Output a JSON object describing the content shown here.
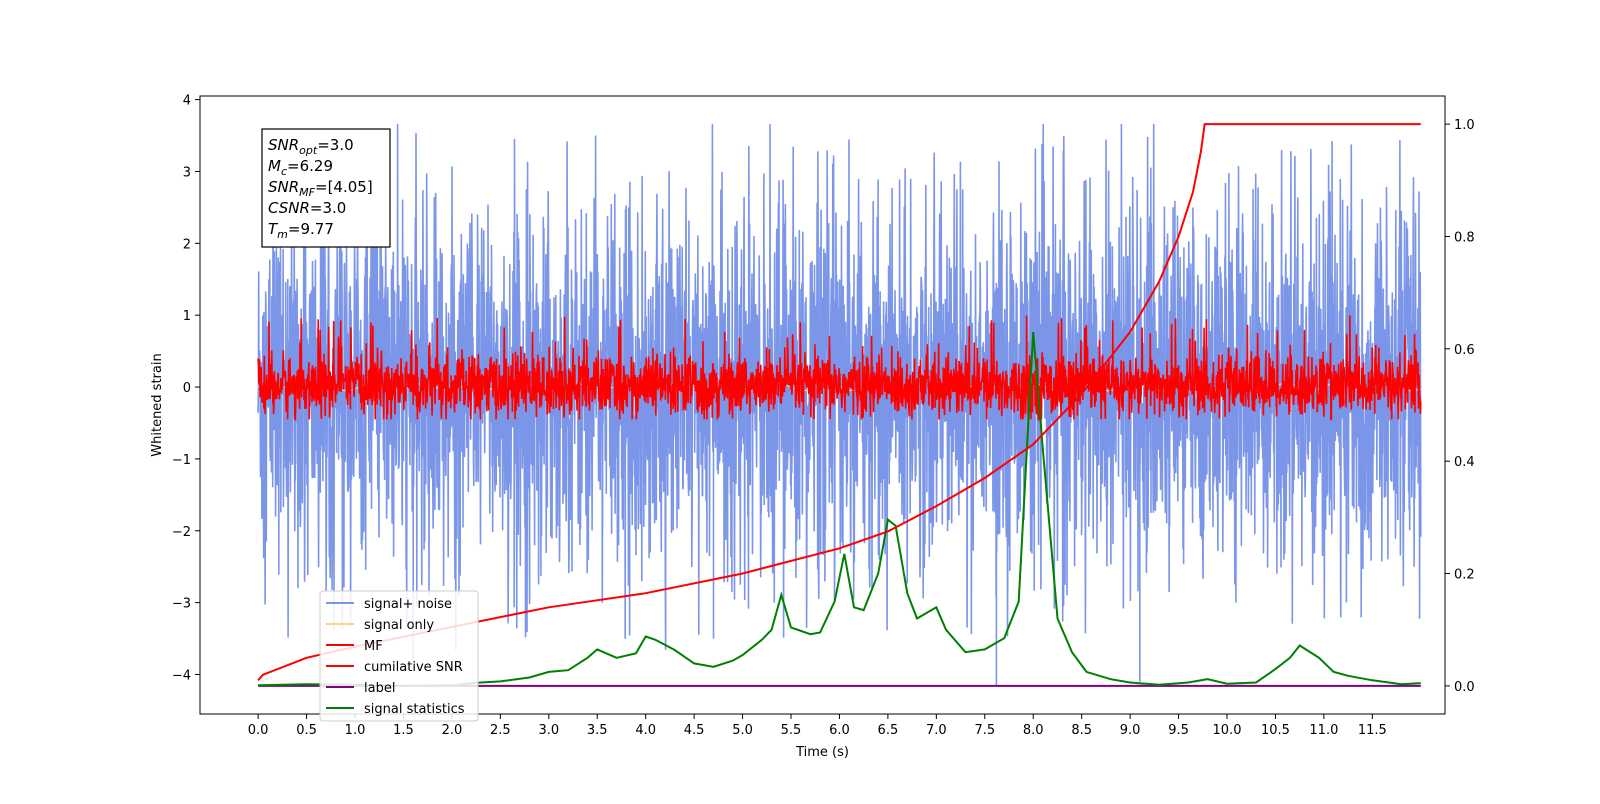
{
  "chart_data": {
    "type": "line",
    "xlabel": "Time (s)",
    "ylabel": "Whitened strain",
    "xlim": [
      -0.6,
      12.25
    ],
    "ylim": [
      -4.55,
      4.05
    ],
    "y2lim": [
      -0.05,
      1.05
    ],
    "x_ticks": [
      "0.0",
      "0.5",
      "1.0",
      "1.5",
      "2.0",
      "2.5",
      "3.0",
      "3.5",
      "4.0",
      "4.5",
      "5.0",
      "5.5",
      "6.0",
      "6.5",
      "7.0",
      "7.5",
      "8.0",
      "8.5",
      "9.0",
      "9.5",
      "10.0",
      "10.5",
      "11.0",
      "11.5"
    ],
    "y_ticks": [
      "4",
      "3",
      "2",
      "1",
      "0",
      "−1",
      "−2",
      "−3",
      "−4"
    ],
    "y2_ticks": [
      "1.0",
      "0.8",
      "0.6",
      "0.4",
      "0.2",
      "0.0"
    ],
    "legend_position": "lower-left",
    "grid": false,
    "info_box": [
      {
        "base": "SNR",
        "sub": "opt",
        "rest": "=3.0"
      },
      {
        "base": "M",
        "sub": "c",
        "rest": "=6.29"
      },
      {
        "base": "SNR",
        "sub": "MF",
        "rest": "=[4.05]"
      },
      {
        "base": "CSNR",
        "sub": "",
        "rest": "=3.0"
      },
      {
        "base": "T",
        "sub": "m",
        "rest": "=9.77"
      }
    ],
    "series": [
      {
        "name": "signal+ noise",
        "color": "#7b96e8",
        "axis": "left",
        "style": "noise band ~[-2.2, 2.2] with spikes to ±3.6",
        "x_range": [
          0.0,
          12.0
        ]
      },
      {
        "name": "signal only",
        "color": "#ffd27f",
        "axis": "left",
        "style": "near zero",
        "x_range": [
          0.0,
          12.0
        ]
      },
      {
        "name": "MF",
        "color": "#ff0000",
        "axis": "left",
        "style": "noise band ~[-0.4, 0.5] with spikes to ±1.0",
        "x_range": [
          0.0,
          12.0
        ]
      },
      {
        "name": "cumilative SNR",
        "color": "#ff0000",
        "axis": "right",
        "points": [
          [
            0.0,
            0.01
          ],
          [
            0.05,
            0.02
          ],
          [
            0.5,
            0.05
          ],
          [
            1.0,
            0.07
          ],
          [
            2.0,
            0.105
          ],
          [
            3.0,
            0.14
          ],
          [
            4.0,
            0.165
          ],
          [
            5.0,
            0.2
          ],
          [
            6.0,
            0.245
          ],
          [
            6.5,
            0.275
          ],
          [
            7.0,
            0.32
          ],
          [
            7.5,
            0.37
          ],
          [
            8.0,
            0.43
          ],
          [
            8.5,
            0.52
          ],
          [
            9.0,
            0.63
          ],
          [
            9.3,
            0.72
          ],
          [
            9.5,
            0.8
          ],
          [
            9.65,
            0.88
          ],
          [
            9.73,
            0.95
          ],
          [
            9.77,
            1.0
          ],
          [
            12.0,
            1.0
          ]
        ]
      },
      {
        "name": "label",
        "color": "#800080",
        "axis": "right",
        "points": [
          [
            0.0,
            0.0
          ],
          [
            12.0,
            0.0
          ]
        ]
      },
      {
        "name": "signal statistics",
        "color": "#008000",
        "axis": "right",
        "points": [
          [
            0.0,
            0.001
          ],
          [
            0.5,
            0.003
          ],
          [
            1.0,
            0.002
          ],
          [
            1.5,
            0.0
          ],
          [
            2.0,
            0.001
          ],
          [
            2.3,
            0.006
          ],
          [
            2.5,
            0.008
          ],
          [
            2.8,
            0.015
          ],
          [
            3.0,
            0.025
          ],
          [
            3.2,
            0.028
          ],
          [
            3.4,
            0.05
          ],
          [
            3.5,
            0.065
          ],
          [
            3.7,
            0.05
          ],
          [
            3.9,
            0.058
          ],
          [
            4.0,
            0.088
          ],
          [
            4.1,
            0.082
          ],
          [
            4.3,
            0.064
          ],
          [
            4.5,
            0.04
          ],
          [
            4.7,
            0.034
          ],
          [
            4.9,
            0.045
          ],
          [
            5.0,
            0.055
          ],
          [
            5.2,
            0.082
          ],
          [
            5.3,
            0.1
          ],
          [
            5.4,
            0.162
          ],
          [
            5.5,
            0.104
          ],
          [
            5.7,
            0.092
          ],
          [
            5.8,
            0.095
          ],
          [
            5.95,
            0.15
          ],
          [
            6.05,
            0.235
          ],
          [
            6.15,
            0.14
          ],
          [
            6.25,
            0.135
          ],
          [
            6.4,
            0.2
          ],
          [
            6.5,
            0.296
          ],
          [
            6.58,
            0.285
          ],
          [
            6.7,
            0.165
          ],
          [
            6.8,
            0.12
          ],
          [
            7.0,
            0.14
          ],
          [
            7.1,
            0.1
          ],
          [
            7.3,
            0.06
          ],
          [
            7.5,
            0.065
          ],
          [
            7.7,
            0.085
          ],
          [
            7.85,
            0.15
          ],
          [
            8.0,
            0.63
          ],
          [
            8.1,
            0.42
          ],
          [
            8.25,
            0.12
          ],
          [
            8.4,
            0.06
          ],
          [
            8.55,
            0.025
          ],
          [
            8.8,
            0.012
          ],
          [
            9.0,
            0.006
          ],
          [
            9.3,
            0.002
          ],
          [
            9.6,
            0.006
          ],
          [
            9.8,
            0.012
          ],
          [
            10.0,
            0.004
          ],
          [
            10.3,
            0.006
          ],
          [
            10.5,
            0.03
          ],
          [
            10.65,
            0.05
          ],
          [
            10.75,
            0.072
          ],
          [
            10.95,
            0.05
          ],
          [
            11.1,
            0.025
          ],
          [
            11.25,
            0.018
          ],
          [
            11.5,
            0.01
          ],
          [
            11.8,
            0.003
          ],
          [
            12.0,
            0.005
          ]
        ]
      }
    ]
  }
}
